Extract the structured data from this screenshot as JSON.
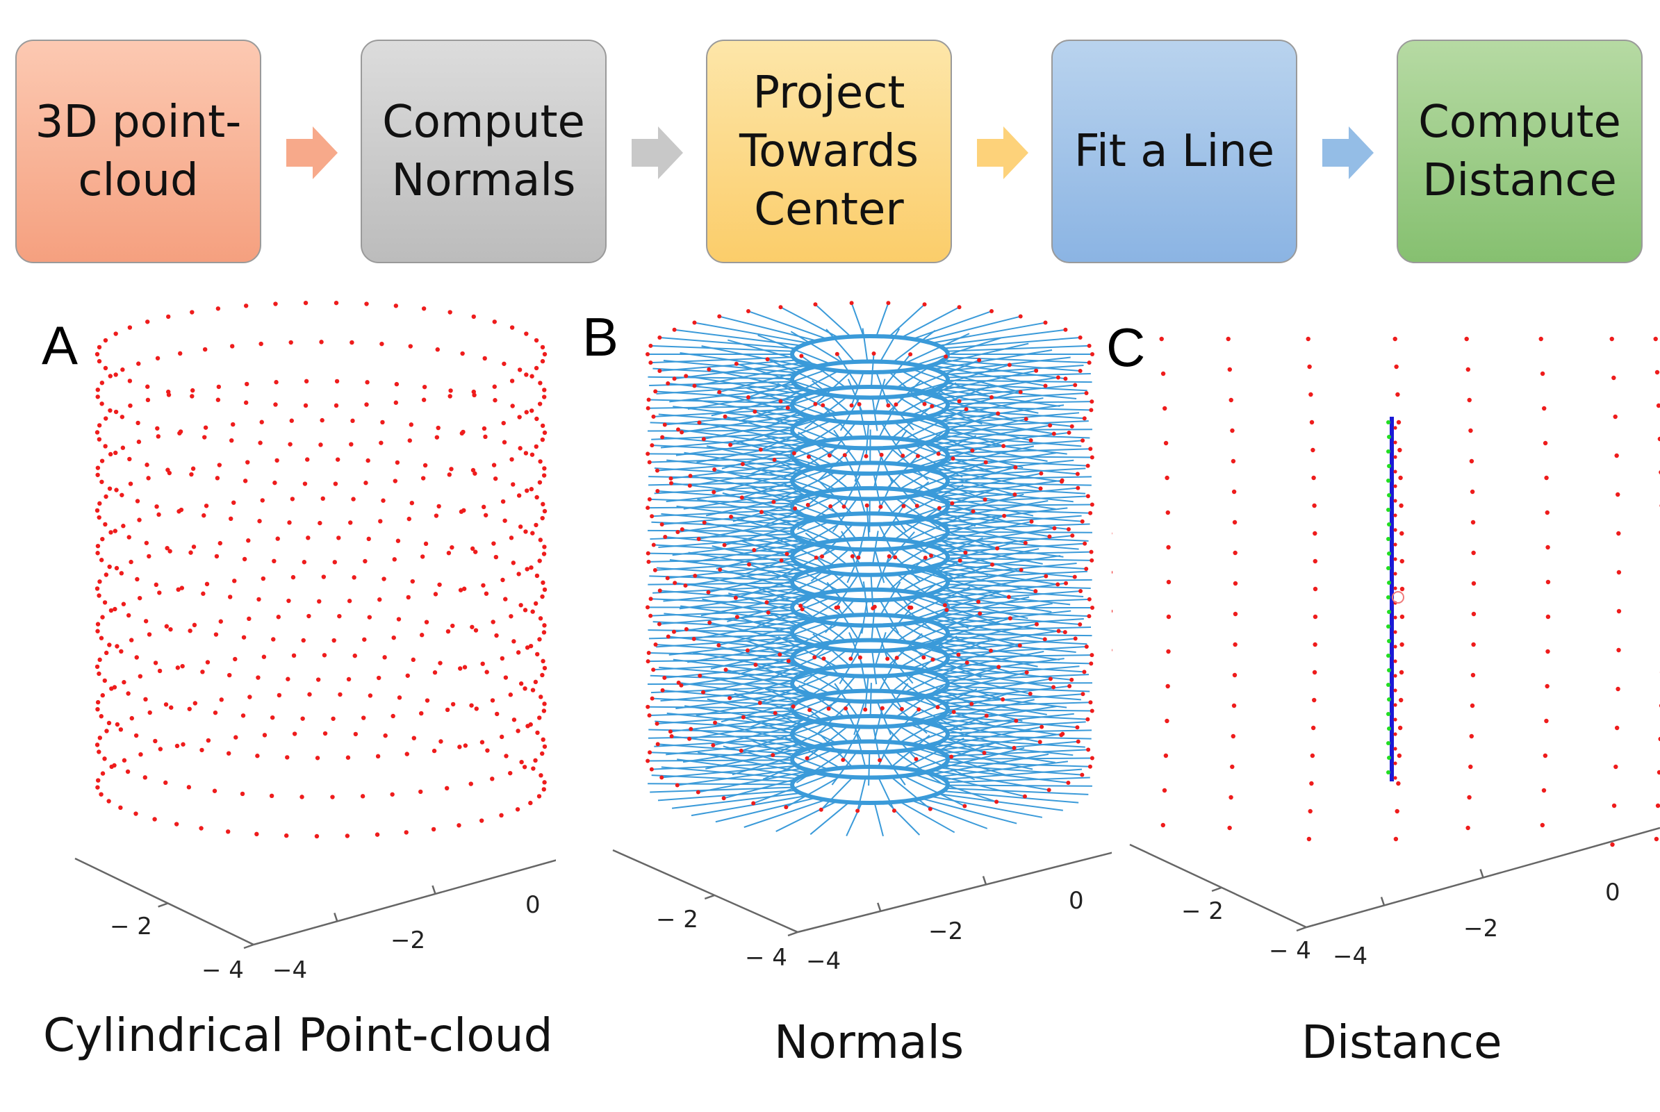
{
  "pipeline": {
    "steps": [
      {
        "label": "3D point-\ncloud",
        "color_top": "#fcc9b2",
        "color_bottom": "#f5a07f"
      },
      {
        "label": "Compute\nNormals",
        "color_top": "#dcdcdc",
        "color_bottom": "#bcbcbc"
      },
      {
        "label": "Project\nTowards\nCenter",
        "color_top": "#fde6a9",
        "color_bottom": "#fbcd6a"
      },
      {
        "label": "Fit a Line",
        "color_top": "#b9d3ee",
        "color_bottom": "#8bb4e3"
      },
      {
        "label": "Compute\nDistance",
        "color_top": "#b6daa3",
        "color_bottom": "#86c070"
      }
    ],
    "arrow_colors": [
      "#f7a98a",
      "#c8c8c8",
      "#fdd27a",
      "#94bde6"
    ]
  },
  "panels": [
    {
      "letter": "A",
      "caption": "Cylindrical Point-cloud",
      "ticks": [
        "− 2",
        "− 4",
        "−4",
        "−2",
        "0"
      ]
    },
    {
      "letter": "B",
      "caption": "Normals",
      "ticks": [
        "− 2",
        "− 4",
        "−4",
        "−2",
        "0"
      ]
    },
    {
      "letter": "C",
      "caption": "Distance",
      "ticks": [
        "− 2",
        "− 4",
        "−4",
        "−2",
        "0"
      ]
    }
  ],
  "colors": {
    "points": "#ee1c1c",
    "normals": "#3a9ad9",
    "fit_line": "#1a1ad6",
    "projected": "#22dd22",
    "axes": "#666666"
  }
}
